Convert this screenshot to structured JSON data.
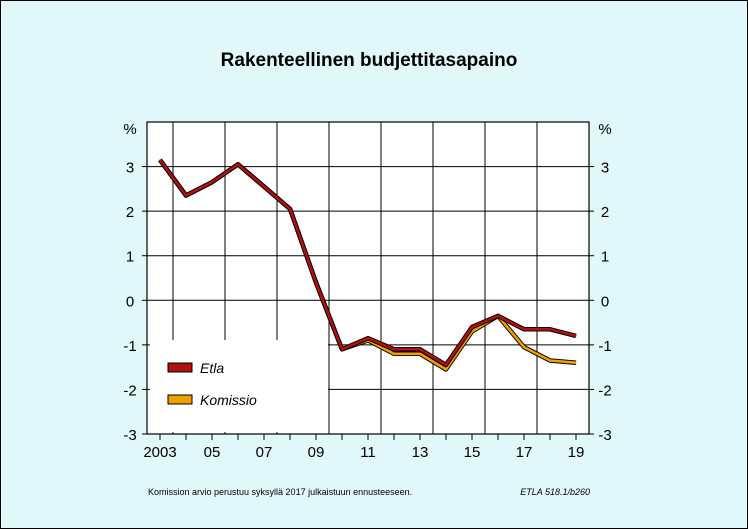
{
  "chart_data": {
    "type": "line",
    "title": "Rakenteellinen budjettitasapaino",
    "unit_left": "%",
    "unit_right": "%",
    "x": [
      2003,
      2004,
      2005,
      2006,
      2007,
      2008,
      2009,
      2010,
      2011,
      2012,
      2013,
      2014,
      2015,
      2016,
      2017,
      2018,
      2019
    ],
    "xtick_values": [
      2003,
      2005,
      2007,
      2009,
      2011,
      2013,
      2015,
      2017,
      2019
    ],
    "xtick_labels": [
      "2003",
      "05",
      "07",
      "09",
      "11",
      "13",
      "15",
      "17",
      "19"
    ],
    "ylim": [
      -3,
      4
    ],
    "ytick_values": [
      3,
      2,
      1,
      0,
      -1,
      -2,
      -3
    ],
    "ytick_labels": [
      "3",
      "2",
      "1",
      "0",
      "-1",
      "-2",
      "-3"
    ],
    "grid": true,
    "legend_position": "bottom-left",
    "series": [
      {
        "name": "Komissio",
        "color": "#f0a000",
        "values": [
          3.15,
          2.35,
          2.65,
          3.05,
          2.55,
          2.05,
          0.4,
          -1.1,
          -0.9,
          -1.2,
          -1.2,
          -1.55,
          -0.7,
          -0.35,
          -1.05,
          -1.35,
          -1.4
        ]
      },
      {
        "name": "Etla",
        "color": "#b01010",
        "values": [
          3.15,
          2.35,
          2.65,
          3.05,
          2.55,
          2.05,
          0.4,
          -1.1,
          -0.85,
          -1.1,
          -1.1,
          -1.45,
          -0.6,
          -0.35,
          -0.65,
          -0.65,
          -0.8
        ]
      }
    ],
    "legend_order": [
      "Etla",
      "Komissio"
    ]
  },
  "footnote": "Komission arvio perustuu syksyllä 2017 julkaistuun ennusteeseen.",
  "source": "ETLA 518.1/b260"
}
